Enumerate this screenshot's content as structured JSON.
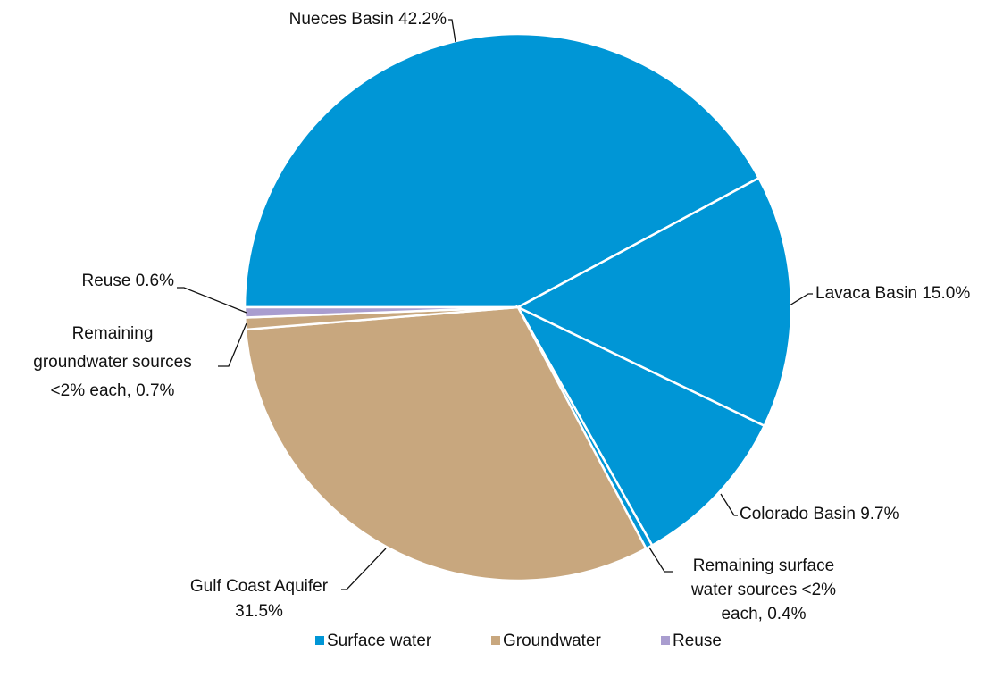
{
  "chart_data": {
    "type": "pie",
    "labels": [
      [
        "Nueces Basin 42.2%"
      ],
      [
        "Lavaca Basin 15.0%"
      ],
      [
        "Colorado Basin 9.7%"
      ],
      [
        "Remaining surface",
        "water sources <2%",
        "each, 0.4%"
      ],
      [
        "Gulf Coast Aquifer",
        "31.5%"
      ],
      [
        "Remaining",
        "groundwater sources",
        "<2% each, 0.7%"
      ],
      [
        "Reuse 0.6%"
      ]
    ],
    "values": [
      42.2,
      15.0,
      9.7,
      0.4,
      31.5,
      0.7,
      0.6
    ],
    "colors": [
      "#0096d6",
      "#0096d6",
      "#0096d6",
      "#0096d6",
      "#c8a77e",
      "#c8a77e",
      "#a99dcf"
    ],
    "legend": [
      {
        "name": "Surface water",
        "color": "#0096d6"
      },
      {
        "name": "Groundwater",
        "color": "#c8a77e"
      },
      {
        "name": "Reuse",
        "color": "#a99dcf"
      }
    ]
  }
}
